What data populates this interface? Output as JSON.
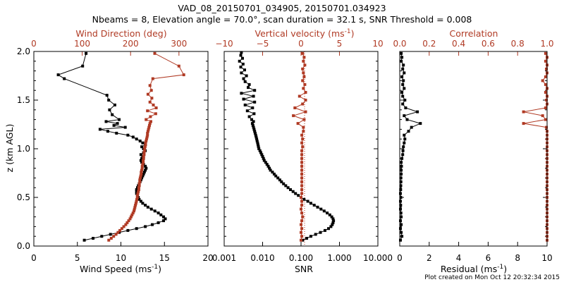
{
  "figure": {
    "title_line1": "VAD_08_20150701_034905, 20150701.034923",
    "title_line2": "Nbeams = 8, Elevation angle = 70.0°, scan duration = 32.1 s, SNR Threshold = 0.008",
    "footer": "Plot created on Mon Oct 12 20:32:34 2015",
    "colors": {
      "black": "#000000",
      "red": "#b03a24"
    }
  },
  "panels": [
    {
      "xlabel": "Wind Speed (ms",
      "xlabel_sup": "-1",
      "xlabel_end": ")",
      "top_label": "Wind Direction (deg)",
      "ylabel": "z (km AGL)",
      "y_ticks": [
        "0.0",
        "0.5",
        "1.0",
        "1.5",
        "2.0"
      ],
      "bottom_ticks": [
        "0",
        "5",
        "10",
        "15",
        "20"
      ],
      "top_ticks": [
        "0",
        "100",
        "200",
        "300"
      ]
    },
    {
      "xlabel": "SNR",
      "top_label": "Vertical velocity (ms",
      "top_label_sup": "-1",
      "top_label_end": ")",
      "bottom_ticks": [
        "0.001",
        "0.010",
        "0.100",
        "1.000",
        "10.000"
      ],
      "top_ticks": [
        "−10",
        "−5",
        "0",
        "5",
        "10"
      ]
    },
    {
      "xlabel": "Residual (ms",
      "xlabel_sup": "-1",
      "xlabel_end": ")",
      "top_label": "Correlation",
      "bottom_ticks": [
        "0",
        "2",
        "4",
        "6",
        "8",
        "10"
      ],
      "top_ticks": [
        "0.0",
        "0.2",
        "0.4",
        "0.6",
        "0.8",
        "1.0"
      ]
    }
  ],
  "chart_data": [
    {
      "type": "line",
      "xlabel": "Wind Speed (ms-1)",
      "top_xlabel": "Wind Direction (deg)",
      "ylabel": "z (km AGL)",
      "ylim": [
        0,
        2
      ],
      "xlim": [
        0,
        20
      ],
      "top_xlim": [
        0,
        360
      ],
      "grid": false,
      "series": [
        {
          "color": "#000000",
          "axis": "bottom",
          "z": [
            0.06,
            0.08,
            0.1,
            0.12,
            0.14,
            0.16,
            0.18,
            0.2,
            0.22,
            0.24,
            0.26,
            0.28,
            0.3,
            0.32,
            0.34,
            0.36,
            0.38,
            0.4,
            0.42,
            0.44,
            0.46,
            0.48,
            0.5,
            0.52,
            0.54,
            0.56,
            0.58,
            0.6,
            0.62,
            0.64,
            0.66,
            0.68,
            0.7,
            0.72,
            0.74,
            0.76,
            0.78,
            0.8,
            0.82,
            0.84,
            0.86,
            0.88,
            0.9,
            0.92,
            0.94,
            0.96,
            0.98,
            1.0,
            1.02,
            1.04,
            1.06,
            1.08,
            1.1,
            1.12,
            1.14,
            1.16,
            1.18,
            1.2,
            1.22,
            1.24,
            1.26,
            1.28,
            1.3,
            1.35,
            1.4,
            1.45,
            1.5,
            1.55,
            1.72,
            1.76,
            1.85,
            1.98
          ],
          "x": [
            5.8,
            6.8,
            7.8,
            8.8,
            9.8,
            10.8,
            11.8,
            12.8,
            13.6,
            14.3,
            14.9,
            15.1,
            14.9,
            14.6,
            14.3,
            13.9,
            13.5,
            13.1,
            12.8,
            12.5,
            12.3,
            12.1,
            12.0,
            11.9,
            11.8,
            11.8,
            11.8,
            11.9,
            12.0,
            12.1,
            12.2,
            12.3,
            12.4,
            12.5,
            12.6,
            12.7,
            12.8,
            12.9,
            12.8,
            12.6,
            12.4,
            12.3,
            12.4,
            12.5,
            12.3,
            12.6,
            12.8,
            12.6,
            12.4,
            12.8,
            12.5,
            12.2,
            11.8,
            11.4,
            10.8,
            9.5,
            8.5,
            7.6,
            10.5,
            9.2,
            9.6,
            8.3,
            9.8,
            9.0,
            8.7,
            9.3,
            8.6,
            8.4,
            3.5,
            2.8,
            5.6,
            6.0
          ]
        },
        {
          "color": "#b03a24",
          "axis": "top",
          "z": [
            0.06,
            0.08,
            0.1,
            0.12,
            0.14,
            0.16,
            0.18,
            0.2,
            0.22,
            0.24,
            0.26,
            0.28,
            0.3,
            0.32,
            0.34,
            0.36,
            0.38,
            0.4,
            0.42,
            0.44,
            0.46,
            0.48,
            0.5,
            0.52,
            0.54,
            0.56,
            0.58,
            0.6,
            0.62,
            0.64,
            0.66,
            0.68,
            0.7,
            0.72,
            0.74,
            0.76,
            0.78,
            0.8,
            0.82,
            0.84,
            0.86,
            0.88,
            0.9,
            0.92,
            0.94,
            0.96,
            0.98,
            1.0,
            1.02,
            1.04,
            1.06,
            1.08,
            1.1,
            1.12,
            1.14,
            1.16,
            1.18,
            1.2,
            1.22,
            1.24,
            1.26,
            1.28,
            1.3,
            1.33,
            1.36,
            1.39,
            1.42,
            1.45,
            1.48,
            1.52,
            1.56,
            1.6,
            1.65,
            1.72,
            1.76,
            1.85,
            1.98
          ],
          "x": [
            155,
            160,
            165,
            170,
            174,
            178,
            182,
            186,
            190,
            193,
            196,
            199,
            201,
            203,
            205,
            207,
            208,
            209,
            210,
            211,
            212,
            213,
            214,
            214,
            215,
            216,
            217,
            217,
            218,
            218,
            219,
            219,
            220,
            221,
            222,
            222,
            223,
            224,
            224,
            225,
            226,
            226,
            227,
            227,
            228,
            228,
            229,
            229,
            230,
            231,
            231,
            232,
            233,
            234,
            235,
            235,
            236,
            237,
            238,
            239,
            240,
            242,
            232,
            241,
            252,
            235,
            253,
            247,
            240,
            244,
            236,
            243,
            240,
            246,
            310,
            300,
            250
          ]
        }
      ]
    },
    {
      "type": "line",
      "xlabel": "SNR",
      "top_xlabel": "Vertical velocity (ms-1)",
      "ylim": [
        0,
        2
      ],
      "xlim": [
        0.001,
        10
      ],
      "x_scale": "log",
      "top_xlim": [
        -10,
        10
      ],
      "grid": false,
      "series": [
        {
          "color": "#000000",
          "axis": "bottom",
          "z": [
            0.06,
            0.08,
            0.1,
            0.12,
            0.14,
            0.16,
            0.18,
            0.2,
            0.22,
            0.24,
            0.26,
            0.28,
            0.3,
            0.32,
            0.34,
            0.36,
            0.38,
            0.4,
            0.42,
            0.44,
            0.46,
            0.48,
            0.5,
            0.52,
            0.54,
            0.56,
            0.58,
            0.6,
            0.62,
            0.64,
            0.66,
            0.68,
            0.7,
            0.72,
            0.74,
            0.76,
            0.78,
            0.8,
            0.82,
            0.84,
            0.86,
            0.88,
            0.9,
            0.92,
            0.94,
            0.96,
            0.98,
            1.0,
            1.02,
            1.04,
            1.06,
            1.08,
            1.1,
            1.12,
            1.14,
            1.16,
            1.18,
            1.2,
            1.22,
            1.24,
            1.26,
            1.28,
            1.3,
            1.33,
            1.36,
            1.39,
            1.42,
            1.45,
            1.48,
            1.51,
            1.54,
            1.57,
            1.6,
            1.63,
            1.66,
            1.69,
            1.72,
            1.75,
            1.78,
            1.81,
            1.84,
            1.87,
            1.9,
            1.93,
            1.96,
            1.99
          ],
          "x": [
            0.11,
            0.14,
            0.18,
            0.24,
            0.32,
            0.42,
            0.52,
            0.6,
            0.65,
            0.68,
            0.7,
            0.68,
            0.63,
            0.56,
            0.48,
            0.4,
            0.33,
            0.27,
            0.22,
            0.18,
            0.15,
            0.12,
            0.1,
            0.085,
            0.072,
            0.062,
            0.053,
            0.046,
            0.04,
            0.035,
            0.031,
            0.028,
            0.025,
            0.022,
            0.02,
            0.018,
            0.016,
            0.015,
            0.014,
            0.013,
            0.012,
            0.011,
            0.0105,
            0.01,
            0.0095,
            0.009,
            0.0085,
            0.008,
            0.0078,
            0.0076,
            0.0074,
            0.0072,
            0.007,
            0.0068,
            0.0066,
            0.0064,
            0.0062,
            0.006,
            0.0058,
            0.0056,
            0.0054,
            0.0058,
            0.0052,
            0.0045,
            0.006,
            0.004,
            0.0055,
            0.0035,
            0.0062,
            0.0032,
            0.0058,
            0.0028,
            0.0062,
            0.0042,
            0.0045,
            0.0035,
            0.0032,
            0.0038,
            0.0028,
            0.0034,
            0.0027,
            0.0031,
            0.0025,
            0.003,
            0.0027,
            0.0028
          ]
        },
        {
          "color": "#b03a24",
          "axis": "top",
          "z": [
            0.06,
            0.1,
            0.14,
            0.18,
            0.22,
            0.26,
            0.3,
            0.34,
            0.38,
            0.42,
            0.46,
            0.5,
            0.54,
            0.58,
            0.62,
            0.66,
            0.7,
            0.74,
            0.78,
            0.82,
            0.86,
            0.9,
            0.94,
            0.98,
            1.02,
            1.06,
            1.1,
            1.14,
            1.18,
            1.22,
            1.26,
            1.3,
            1.34,
            1.38,
            1.42,
            1.46,
            1.5,
            1.54,
            1.58,
            1.62,
            1.66,
            1.7,
            1.74,
            1.78,
            1.82,
            1.86,
            1.9,
            1.94,
            1.98
          ],
          "x": [
            0.0,
            0.1,
            0.0,
            0.1,
            0.0,
            0.1,
            0.2,
            0.1,
            0.0,
            0.1,
            0.1,
            0.0,
            0.1,
            0.1,
            0.1,
            0.1,
            0.1,
            0.1,
            0.1,
            0.1,
            0.1,
            0.1,
            0.1,
            0.1,
            0.2,
            0.1,
            0.2,
            0.1,
            0.3,
            0.3,
            -0.4,
            0.4,
            -1.0,
            0.6,
            -0.8,
            0.2,
            0.6,
            -0.2,
            0.6,
            0.3,
            0.5,
            0.2,
            0.4,
            0.3,
            0.2,
            0.5,
            0.3,
            0.4,
            0.2
          ]
        }
      ]
    },
    {
      "type": "line",
      "xlabel": "Residual (ms-1)",
      "top_xlabel": "Correlation",
      "ylim": [
        0,
        2
      ],
      "xlim": [
        0,
        10
      ],
      "top_xlim": [
        0,
        1
      ],
      "grid": false,
      "series": [
        {
          "color": "#000000",
          "axis": "bottom",
          "z": [
            0.06,
            0.1,
            0.14,
            0.18,
            0.22,
            0.26,
            0.3,
            0.34,
            0.38,
            0.42,
            0.46,
            0.5,
            0.54,
            0.58,
            0.62,
            0.66,
            0.7,
            0.74,
            0.78,
            0.82,
            0.86,
            0.9,
            0.94,
            0.98,
            1.02,
            1.06,
            1.1,
            1.14,
            1.18,
            1.22,
            1.26,
            1.3,
            1.34,
            1.38,
            1.42,
            1.46,
            1.5,
            1.54,
            1.58,
            1.62,
            1.66,
            1.7,
            1.74,
            1.78,
            1.82,
            1.86,
            1.9,
            1.94,
            1.98
          ],
          "x": [
            0.05,
            0.15,
            0.1,
            0.05,
            0.1,
            0.05,
            0.1,
            0.08,
            0.05,
            0.06,
            0.05,
            0.07,
            0.05,
            0.06,
            0.07,
            0.08,
            0.08,
            0.1,
            0.1,
            0.12,
            0.1,
            0.15,
            0.2,
            0.22,
            0.25,
            0.3,
            0.35,
            0.3,
            0.6,
            0.8,
            1.4,
            0.5,
            0.3,
            1.2,
            0.4,
            0.2,
            0.35,
            0.2,
            0.15,
            0.3,
            0.2,
            0.25,
            0.15,
            0.3,
            0.2,
            0.25,
            0.1,
            0.15,
            0.1
          ]
        },
        {
          "color": "#b03a24",
          "axis": "top",
          "z": [
            0.06,
            0.1,
            0.14,
            0.18,
            0.22,
            0.26,
            0.3,
            0.34,
            0.38,
            0.42,
            0.46,
            0.5,
            0.54,
            0.58,
            0.62,
            0.66,
            0.7,
            0.74,
            0.78,
            0.82,
            0.86,
            0.9,
            0.94,
            0.98,
            1.02,
            1.06,
            1.1,
            1.14,
            1.18,
            1.22,
            1.26,
            1.3,
            1.34,
            1.38,
            1.42,
            1.46,
            1.5,
            1.54,
            1.58,
            1.62,
            1.66,
            1.7,
            1.74,
            1.78,
            1.82,
            1.86,
            1.9,
            1.94,
            1.98
          ],
          "x": [
            1.0,
            1.0,
            1.0,
            1.0,
            1.0,
            1.0,
            1.0,
            1.0,
            1.0,
            1.0,
            1.0,
            1.0,
            1.0,
            1.0,
            1.0,
            1.0,
            1.0,
            1.0,
            1.0,
            1.0,
            1.0,
            1.0,
            1.0,
            1.0,
            1.0,
            1.0,
            1.0,
            1.0,
            1.0,
            0.995,
            0.84,
            0.99,
            0.97,
            0.84,
            0.99,
            1.0,
            0.995,
            1.0,
            0.99,
            1.0,
            0.99,
            0.97,
            0.99,
            1.0,
            0.995,
            1.0,
            0.99,
            1.0,
            0.99
          ]
        }
      ]
    }
  ]
}
